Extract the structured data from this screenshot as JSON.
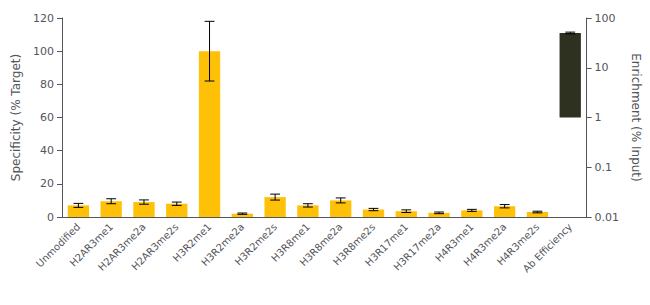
{
  "chart_data": {
    "type": "bar",
    "categories": [
      "Unmodified",
      "H2AR3me1",
      "H2AR3me2a",
      "H2AR3me2s",
      "H3R2me1",
      "H3R2me2a",
      "H3R2me2s",
      "H3R8me1",
      "H3R8me2a",
      "H3R8me2s",
      "H3R17me1",
      "H3R17me2a",
      "H4R3me1",
      "H4R3me2a",
      "H4R3me2s",
      "Ab Efficiency"
    ],
    "series": [
      {
        "color": "#FFC107",
        "values": [
          7.0,
          9.5,
          9.0,
          8.0,
          100.0,
          2.0,
          12.0,
          7.0,
          10.0,
          4.5,
          3.5,
          2.5,
          4.0,
          6.5,
          3.0,
          null
        ],
        "errors": [
          1.2,
          1.5,
          1.3,
          1.0,
          18.0,
          0.4,
          1.8,
          1.0,
          1.5,
          0.7,
          0.8,
          0.5,
          0.6,
          1.0,
          0.5,
          null
        ]
      },
      {
        "color": "#2E3020",
        "axis": "y2",
        "values": [
          null,
          null,
          null,
          null,
          null,
          null,
          null,
          null,
          null,
          null,
          null,
          null,
          null,
          null,
          null,
          50.0
        ],
        "errors": [
          null,
          null,
          null,
          null,
          null,
          null,
          null,
          null,
          null,
          null,
          null,
          null,
          null,
          null,
          null,
          2.0
        ]
      }
    ],
    "ylabel": "Specificity (% Target)",
    "y2label": "Enrichment (% Input)",
    "ylim": [
      0,
      120
    ],
    "yticks": [
      0,
      20,
      40,
      60,
      80,
      100,
      120
    ],
    "y2lim": [
      0.01,
      100
    ],
    "y2ticks": [
      0.01,
      0.1,
      1,
      10,
      100
    ],
    "log": "y2",
    "grid": false
  }
}
